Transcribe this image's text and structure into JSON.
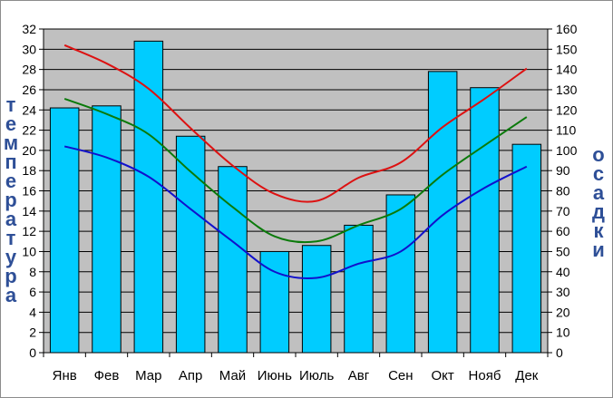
{
  "chart_data": {
    "type": "bar",
    "ylabel_left": "температура",
    "ylabel_right": "осадки",
    "categories": [
      "Янв",
      "Фев",
      "Мар",
      "Апр",
      "Май",
      "Июнь",
      "Июль",
      "Авг",
      "Сен",
      "Окт",
      "Нояб",
      "Дек"
    ],
    "y_left": {
      "min": 0,
      "max": 32,
      "step": 2
    },
    "y_right": {
      "min": 0,
      "max": 160,
      "step": 10
    },
    "bars": {
      "axis": "right",
      "color": "#00ccff",
      "values": [
        121,
        122,
        154,
        107,
        92,
        50,
        53,
        63,
        78,
        139,
        131,
        103
      ]
    },
    "lines": [
      {
        "axis": "left",
        "color": "#dd1111",
        "values": [
          30.4,
          28.6,
          26.1,
          22.2,
          18.5,
          15.7,
          15.0,
          17.3,
          18.8,
          22.3,
          25.1,
          28.1
        ]
      },
      {
        "axis": "left",
        "color": "#0a7a0a",
        "values": [
          25.1,
          23.6,
          21.6,
          17.9,
          14.4,
          11.5,
          11.0,
          12.6,
          14.2,
          17.6,
          20.5,
          23.3
        ]
      },
      {
        "axis": "left",
        "color": "#1111cc",
        "values": [
          20.4,
          19.3,
          17.4,
          14.2,
          11.0,
          8.0,
          7.4,
          8.8,
          10.0,
          13.6,
          16.3,
          18.4
        ]
      }
    ],
    "grid": true,
    "plot_background": "#c0c0c0"
  }
}
